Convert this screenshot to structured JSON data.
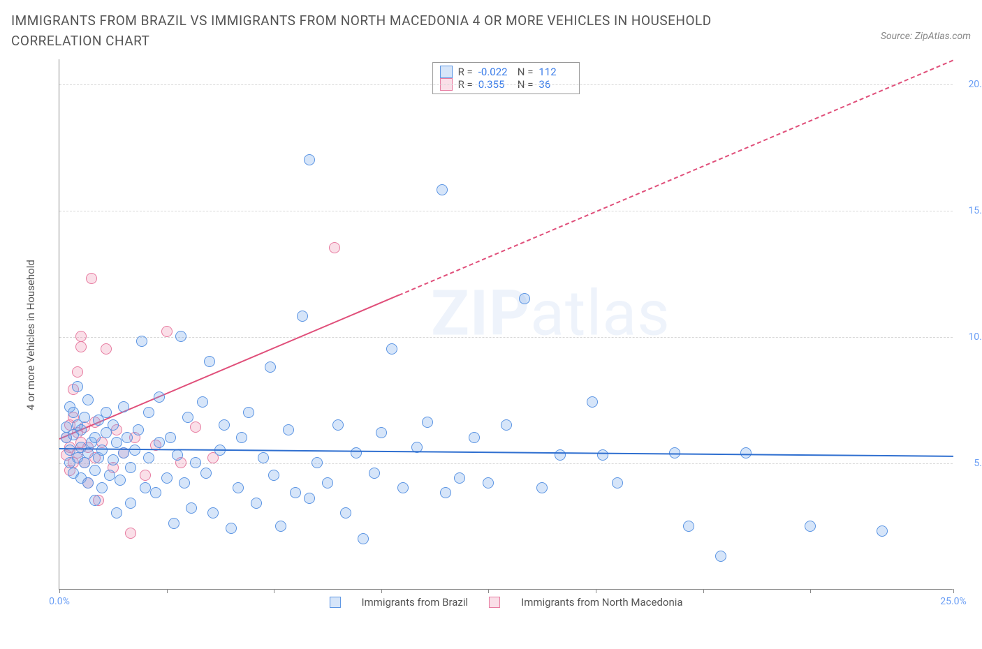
{
  "title": "IMMIGRANTS FROM BRAZIL VS IMMIGRANTS FROM NORTH MACEDONIA 4 OR MORE VEHICLES IN HOUSEHOLD CORRELATION CHART",
  "source_label": "Source: ZipAtlas.com",
  "y_axis_title": "4 or more Vehicles in Household",
  "watermark_bold": "ZIP",
  "watermark_light": "atlas",
  "chart": {
    "type": "scatter",
    "background_color": "#ffffff",
    "grid_color": "#d8d8d8",
    "axis_color": "#888888",
    "tick_label_color": "#6a9ef5",
    "xlim": [
      0,
      25
    ],
    "ylim": [
      0,
      21
    ],
    "x_ticks": [
      0,
      3,
      6,
      9,
      12,
      15,
      18,
      21,
      25
    ],
    "x_tick_labels": {
      "0": "0.0%",
      "25": "25.0%"
    },
    "y_ticks": [
      5,
      10,
      15,
      20
    ],
    "y_tick_labels": [
      "5.0%",
      "10.0%",
      "15.0%",
      "20.0%"
    ],
    "point_radius": 8,
    "point_border_width": 1.5,
    "point_fill_opacity": 0.25
  },
  "series": {
    "brazil": {
      "label": "Immigrants from Brazil",
      "color": "#5a94e3",
      "fill": "rgba(120,170,235,0.30)",
      "R": "-0.022",
      "N": "112",
      "trend": {
        "x1": 0,
        "y1": 5.6,
        "x2": 25,
        "y2": 5.3,
        "solid_until_x": 25,
        "color": "#2f6fd0",
        "width": 2
      },
      "points": [
        [
          0.2,
          6.0
        ],
        [
          0.2,
          6.4
        ],
        [
          0.3,
          5.0
        ],
        [
          0.3,
          5.5
        ],
        [
          0.3,
          7.2
        ],
        [
          0.4,
          4.6
        ],
        [
          0.4,
          6.1
        ],
        [
          0.4,
          7.0
        ],
        [
          0.5,
          5.2
        ],
        [
          0.5,
          6.5
        ],
        [
          0.5,
          8.0
        ],
        [
          0.6,
          4.4
        ],
        [
          0.6,
          5.6
        ],
        [
          0.6,
          6.3
        ],
        [
          0.7,
          5.0
        ],
        [
          0.7,
          6.8
        ],
        [
          0.8,
          4.2
        ],
        [
          0.8,
          5.4
        ],
        [
          0.8,
          7.5
        ],
        [
          0.9,
          5.8
        ],
        [
          1.0,
          3.5
        ],
        [
          1.0,
          4.7
        ],
        [
          1.0,
          6.0
        ],
        [
          1.1,
          5.2
        ],
        [
          1.1,
          6.7
        ],
        [
          1.2,
          4.0
        ],
        [
          1.2,
          5.5
        ],
        [
          1.3,
          6.2
        ],
        [
          1.3,
          7.0
        ],
        [
          1.4,
          4.5
        ],
        [
          1.5,
          5.1
        ],
        [
          1.5,
          6.5
        ],
        [
          1.6,
          3.0
        ],
        [
          1.6,
          5.8
        ],
        [
          1.7,
          4.3
        ],
        [
          1.8,
          5.4
        ],
        [
          1.8,
          7.2
        ],
        [
          1.9,
          6.0
        ],
        [
          2.0,
          3.4
        ],
        [
          2.0,
          4.8
        ],
        [
          2.1,
          5.5
        ],
        [
          2.2,
          6.3
        ],
        [
          2.3,
          9.8
        ],
        [
          2.4,
          4.0
        ],
        [
          2.5,
          5.2
        ],
        [
          2.5,
          7.0
        ],
        [
          2.7,
          3.8
        ],
        [
          2.8,
          5.8
        ],
        [
          2.8,
          7.6
        ],
        [
          3.0,
          4.4
        ],
        [
          3.1,
          6.0
        ],
        [
          3.2,
          2.6
        ],
        [
          3.3,
          5.3
        ],
        [
          3.4,
          10.0
        ],
        [
          3.5,
          4.2
        ],
        [
          3.6,
          6.8
        ],
        [
          3.7,
          3.2
        ],
        [
          3.8,
          5.0
        ],
        [
          4.0,
          7.4
        ],
        [
          4.1,
          4.6
        ],
        [
          4.2,
          9.0
        ],
        [
          4.3,
          3.0
        ],
        [
          4.5,
          5.5
        ],
        [
          4.6,
          6.5
        ],
        [
          4.8,
          2.4
        ],
        [
          5.0,
          4.0
        ],
        [
          5.1,
          6.0
        ],
        [
          5.3,
          7.0
        ],
        [
          5.5,
          3.4
        ],
        [
          5.7,
          5.2
        ],
        [
          5.9,
          8.8
        ],
        [
          6.0,
          4.5
        ],
        [
          6.2,
          2.5
        ],
        [
          6.4,
          6.3
        ],
        [
          6.6,
          3.8
        ],
        [
          6.8,
          10.8
        ],
        [
          7.0,
          3.6
        ],
        [
          7.0,
          17.0
        ],
        [
          7.2,
          5.0
        ],
        [
          7.5,
          4.2
        ],
        [
          7.8,
          6.5
        ],
        [
          8.0,
          3.0
        ],
        [
          8.3,
          5.4
        ],
        [
          8.5,
          2.0
        ],
        [
          8.8,
          4.6
        ],
        [
          9.0,
          6.2
        ],
        [
          9.3,
          9.5
        ],
        [
          9.6,
          4.0
        ],
        [
          10.0,
          5.6
        ],
        [
          10.3,
          6.6
        ],
        [
          10.7,
          15.8
        ],
        [
          10.8,
          3.8
        ],
        [
          11.2,
          4.4
        ],
        [
          11.6,
          6.0
        ],
        [
          12.0,
          4.2
        ],
        [
          12.5,
          6.5
        ],
        [
          13.0,
          11.5
        ],
        [
          13.5,
          4.0
        ],
        [
          14.0,
          5.3
        ],
        [
          14.9,
          7.4
        ],
        [
          15.2,
          5.3
        ],
        [
          15.6,
          4.2
        ],
        [
          17.2,
          5.4
        ],
        [
          17.6,
          2.5
        ],
        [
          18.5,
          1.3
        ],
        [
          19.2,
          5.4
        ],
        [
          21.0,
          2.5
        ],
        [
          23.0,
          2.3
        ]
      ]
    },
    "macedonia": {
      "label": "Immigrants from North Macedonia",
      "color": "#e77ba0",
      "fill": "rgba(240,150,180,0.30)",
      "R": "0.355",
      "N": "36",
      "trend": {
        "x1": 0,
        "y1": 6.0,
        "x2": 25,
        "y2": 21.0,
        "solid_until_x": 9.5,
        "color": "#e04f7a",
        "width": 2
      },
      "points": [
        [
          0.2,
          5.3
        ],
        [
          0.2,
          6.0
        ],
        [
          0.3,
          4.7
        ],
        [
          0.3,
          5.6
        ],
        [
          0.3,
          6.5
        ],
        [
          0.4,
          5.0
        ],
        [
          0.4,
          6.8
        ],
        [
          0.4,
          7.9
        ],
        [
          0.5,
          5.4
        ],
        [
          0.5,
          6.2
        ],
        [
          0.5,
          8.6
        ],
        [
          0.6,
          5.8
        ],
        [
          0.6,
          9.6
        ],
        [
          0.6,
          10.0
        ],
        [
          0.7,
          5.0
        ],
        [
          0.7,
          6.4
        ],
        [
          0.8,
          4.2
        ],
        [
          0.8,
          5.6
        ],
        [
          0.9,
          12.3
        ],
        [
          1.0,
          5.2
        ],
        [
          1.0,
          6.6
        ],
        [
          1.1,
          3.5
        ],
        [
          1.2,
          5.8
        ],
        [
          1.3,
          9.5
        ],
        [
          1.5,
          4.8
        ],
        [
          1.6,
          6.3
        ],
        [
          1.8,
          5.4
        ],
        [
          2.0,
          2.2
        ],
        [
          2.1,
          6.0
        ],
        [
          2.4,
          4.5
        ],
        [
          2.7,
          5.7
        ],
        [
          3.0,
          10.2
        ],
        [
          3.4,
          5.0
        ],
        [
          3.8,
          6.4
        ],
        [
          4.3,
          5.2
        ],
        [
          7.7,
          13.5
        ]
      ]
    }
  },
  "stats_labels": {
    "R": "R =",
    "N": "N ="
  }
}
